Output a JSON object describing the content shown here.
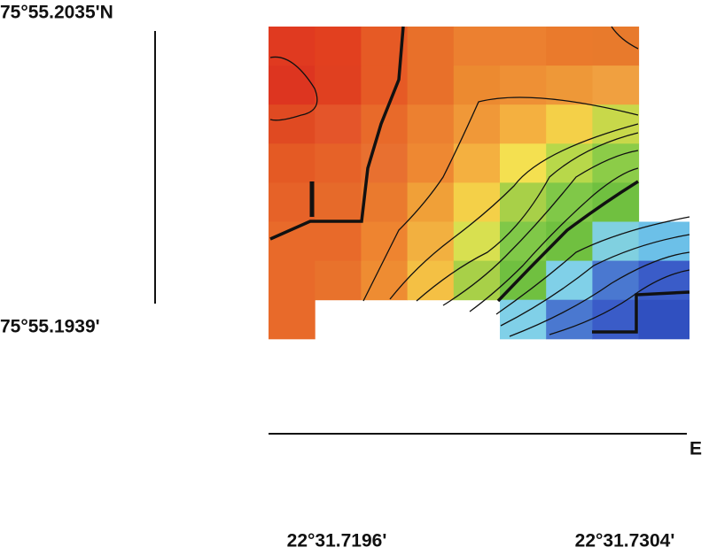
{
  "labels": {
    "lat_top": "75°55.2035'N",
    "lat_bottom": "75°55.1939'",
    "east": "E",
    "lon_left": "22°31.7196'",
    "lon_right": "22°31.7304'"
  }
}
